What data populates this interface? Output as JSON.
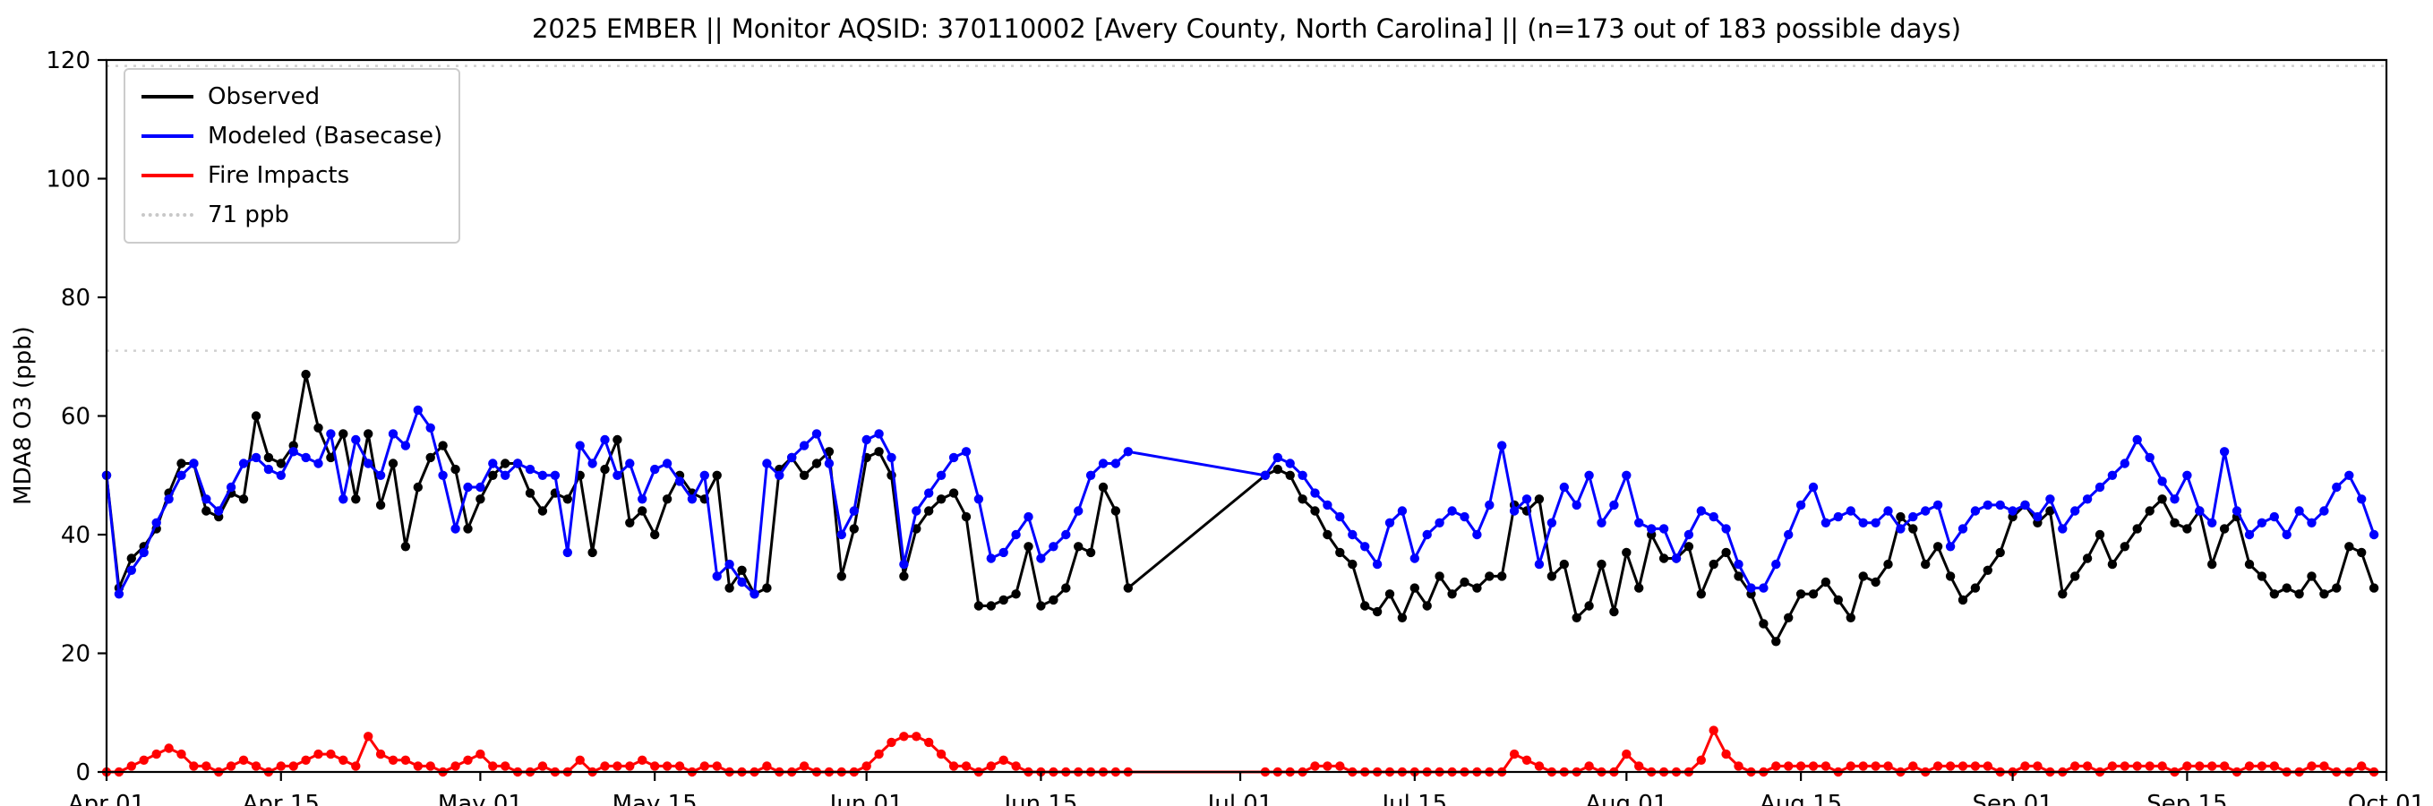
{
  "chart_data": {
    "type": "line",
    "title": "2025 EMBER || Monitor AQSID: 370110002 [Avery County, North Carolina] || (n=173 out of 183 possible days)",
    "xlabel": "",
    "ylabel": "MDA8 O3 (ppb)",
    "ylim": [
      0,
      120
    ],
    "yticks": [
      0,
      20,
      40,
      60,
      80,
      100,
      120
    ],
    "x_domain": [
      0,
      183
    ],
    "x_unit": "days since Apr 01",
    "n_observed": 173,
    "n_possible": 183,
    "grid": false,
    "xticks": [
      {
        "label": "Apr 01",
        "day": 0
      },
      {
        "label": "Apr 15",
        "day": 14
      },
      {
        "label": "May 01",
        "day": 30
      },
      {
        "label": "May 15",
        "day": 44
      },
      {
        "label": "Jun 01",
        "day": 61
      },
      {
        "label": "Jun 15",
        "day": 75
      },
      {
        "label": "Jul 01",
        "day": 91
      },
      {
        "label": "Jul 15",
        "day": 105
      },
      {
        "label": "Aug 01",
        "day": 122
      },
      {
        "label": "Aug 15",
        "day": 136
      },
      {
        "label": "Sep 01",
        "day": 153
      },
      {
        "label": "Sep 15",
        "day": 167
      },
      {
        "label": "Oct 01",
        "day": 183
      }
    ],
    "reference_lines": [
      {
        "value": 71,
        "label": "71 ppb",
        "color": "#d0d0d0",
        "style": "dotted"
      },
      {
        "value": 119,
        "label": "",
        "color": "#d0d0d0",
        "style": "dotted"
      }
    ],
    "legend": {
      "position": "upper left",
      "entries": [
        {
          "label": "Observed",
          "color": "#000000",
          "style": "solid"
        },
        {
          "label": "Modeled (Basecase)",
          "color": "#0000ff",
          "style": "solid"
        },
        {
          "label": "Fire Impacts",
          "color": "#ff0000",
          "style": "solid"
        },
        {
          "label": "71 ppb",
          "color": "#c8c8c8",
          "style": "dotted"
        }
      ]
    },
    "series": [
      {
        "name": "Observed",
        "color": "#000000",
        "marker": "circle",
        "values": [
          50,
          31,
          36,
          38,
          41,
          47,
          52,
          52,
          44,
          43,
          47,
          46,
          60,
          53,
          52,
          55,
          67,
          58,
          53,
          57,
          46,
          57,
          45,
          52,
          38,
          48,
          53,
          55,
          51,
          41,
          46,
          50,
          52,
          52,
          47,
          44,
          47,
          46,
          50,
          37,
          51,
          56,
          42,
          44,
          40,
          46,
          50,
          47,
          46,
          50,
          31,
          34,
          30,
          31,
          51,
          53,
          50,
          52,
          54,
          33,
          41,
          53,
          54,
          50,
          33,
          41,
          44,
          46,
          47,
          43,
          28,
          28,
          29,
          30,
          38,
          28,
          29,
          31,
          38,
          37,
          48,
          44,
          31,
          null,
          null,
          null,
          null,
          null,
          null,
          null,
          null,
          null,
          null,
          50,
          51,
          50,
          46,
          44,
          40,
          37,
          35,
          28,
          27,
          30,
          26,
          31,
          28,
          33,
          30,
          32,
          31,
          33,
          33,
          45,
          44,
          46,
          33,
          35,
          26,
          28,
          35,
          27,
          37,
          31,
          40,
          36,
          36,
          38,
          30,
          35,
          37,
          33,
          30,
          25,
          22,
          26,
          30,
          30,
          32,
          29,
          26,
          33,
          32,
          35,
          43,
          41,
          35,
          38,
          33,
          29,
          31,
          34,
          37,
          43,
          45,
          42,
          44,
          30,
          33,
          36,
          40,
          35,
          38,
          41,
          44,
          46,
          42,
          41,
          44,
          35,
          41,
          43,
          35,
          33,
          30,
          31,
          30,
          33,
          30,
          31,
          38,
          37,
          31
        ]
      },
      {
        "name": "Modeled (Basecase)",
        "color": "#0000ff",
        "marker": "circle",
        "values": [
          50,
          30,
          34,
          37,
          42,
          46,
          50,
          52,
          46,
          44,
          48,
          52,
          53,
          51,
          50,
          54,
          53,
          52,
          57,
          46,
          56,
          52,
          50,
          57,
          55,
          61,
          58,
          50,
          41,
          48,
          48,
          52,
          50,
          52,
          51,
          50,
          50,
          37,
          55,
          52,
          56,
          50,
          52,
          46,
          51,
          52,
          49,
          46,
          50,
          33,
          35,
          32,
          30,
          52,
          50,
          53,
          55,
          57,
          52,
          40,
          44,
          56,
          57,
          53,
          35,
          44,
          47,
          50,
          53,
          54,
          46,
          36,
          37,
          40,
          43,
          36,
          38,
          40,
          44,
          50,
          52,
          52,
          54,
          null,
          null,
          null,
          null,
          null,
          null,
          null,
          null,
          null,
          null,
          50,
          53,
          52,
          50,
          47,
          45,
          43,
          40,
          38,
          35,
          42,
          44,
          36,
          40,
          42,
          44,
          43,
          40,
          45,
          55,
          44,
          46,
          35,
          42,
          48,
          45,
          50,
          42,
          45,
          50,
          42,
          41,
          41,
          36,
          40,
          44,
          43,
          41,
          35,
          31,
          31,
          35,
          40,
          45,
          48,
          42,
          43,
          44,
          42,
          42,
          44,
          41,
          43,
          44,
          45,
          38,
          41,
          44,
          45,
          45,
          44,
          45,
          43,
          46,
          41,
          44,
          46,
          48,
          50,
          52,
          56,
          53,
          49,
          46,
          50,
          44,
          42,
          54,
          44,
          40,
          42,
          43,
          40,
          44,
          42,
          44,
          48,
          50,
          46,
          40
        ]
      },
      {
        "name": "Fire Impacts",
        "color": "#ff0000",
        "marker": "circle",
        "values": [
          0,
          0,
          1,
          2,
          3,
          4,
          3,
          1,
          1,
          0,
          1,
          2,
          1,
          0,
          1,
          1,
          2,
          3,
          3,
          2,
          1,
          6,
          3,
          2,
          2,
          1,
          1,
          0,
          1,
          2,
          3,
          1,
          1,
          0,
          0,
          1,
          0,
          0,
          2,
          0,
          1,
          1,
          1,
          2,
          1,
          1,
          1,
          0,
          1,
          1,
          0,
          0,
          0,
          1,
          0,
          0,
          1,
          0,
          0,
          0,
          0,
          1,
          3,
          5,
          6,
          6,
          5,
          3,
          1,
          1,
          0,
          1,
          2,
          1,
          0,
          0,
          0,
          0,
          0,
          0,
          0,
          0,
          0,
          null,
          null,
          null,
          null,
          null,
          null,
          null,
          null,
          null,
          null,
          0,
          0,
          0,
          0,
          1,
          1,
          1,
          0,
          0,
          0,
          0,
          0,
          0,
          0,
          0,
          0,
          0,
          0,
          0,
          0,
          3,
          2,
          1,
          0,
          0,
          0,
          1,
          0,
          0,
          3,
          1,
          0,
          0,
          0,
          0,
          2,
          7,
          3,
          1,
          0,
          0,
          1,
          1,
          1,
          1,
          1,
          0,
          1,
          1,
          1,
          1,
          0,
          1,
          0,
          1,
          1,
          1,
          1,
          1,
          0,
          0,
          1,
          1,
          0,
          0,
          1,
          1,
          0,
          1,
          1,
          1,
          1,
          1,
          0,
          1,
          1,
          1,
          1,
          0,
          1,
          1,
          1,
          0,
          0,
          1,
          1,
          0,
          0,
          1,
          0
        ]
      }
    ]
  }
}
